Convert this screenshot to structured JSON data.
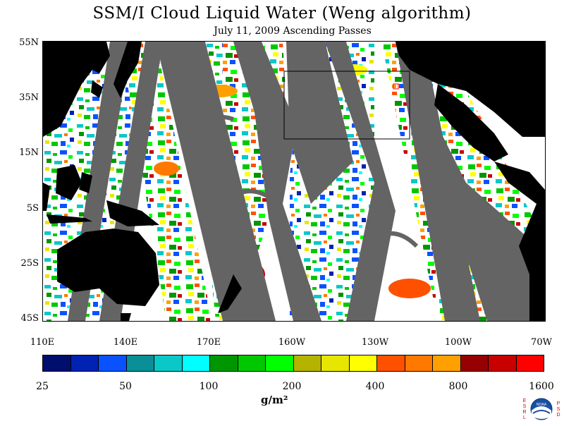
{
  "title": "SSM/I Cloud Liquid Water (Weng algorithm)",
  "subtitle": "July 11, 2009  Ascending Passes",
  "lat_labels": [
    "55N",
    "35N",
    "15N",
    "5S",
    "25S",
    "45S"
  ],
  "lon_labels": [
    "110E",
    "140E",
    "170E",
    "160W",
    "130W",
    "100W",
    "70W"
  ],
  "colorbar": {
    "colors": [
      "#000e6e",
      "#0022b3",
      "#0a52ff",
      "#0a8f96",
      "#0ac8c8",
      "#00ffff",
      "#009600",
      "#00c800",
      "#00ff00",
      "#b3b300",
      "#e6e600",
      "#ffff00",
      "#ff5000",
      "#ff7800",
      "#ffa000",
      "#960000",
      "#c80000",
      "#ff0000"
    ],
    "labels": [
      "25",
      "50",
      "100",
      "200",
      "400",
      "800",
      "1600"
    ],
    "unit": "g/m²"
  },
  "colors": {
    "land": "#000000",
    "nodata": "#646464",
    "ocean": "#ffffff"
  },
  "logo": {
    "name": "noaa-esrl-psd-logo",
    "left_text": "ESRL",
    "right_text": "PSD"
  }
}
